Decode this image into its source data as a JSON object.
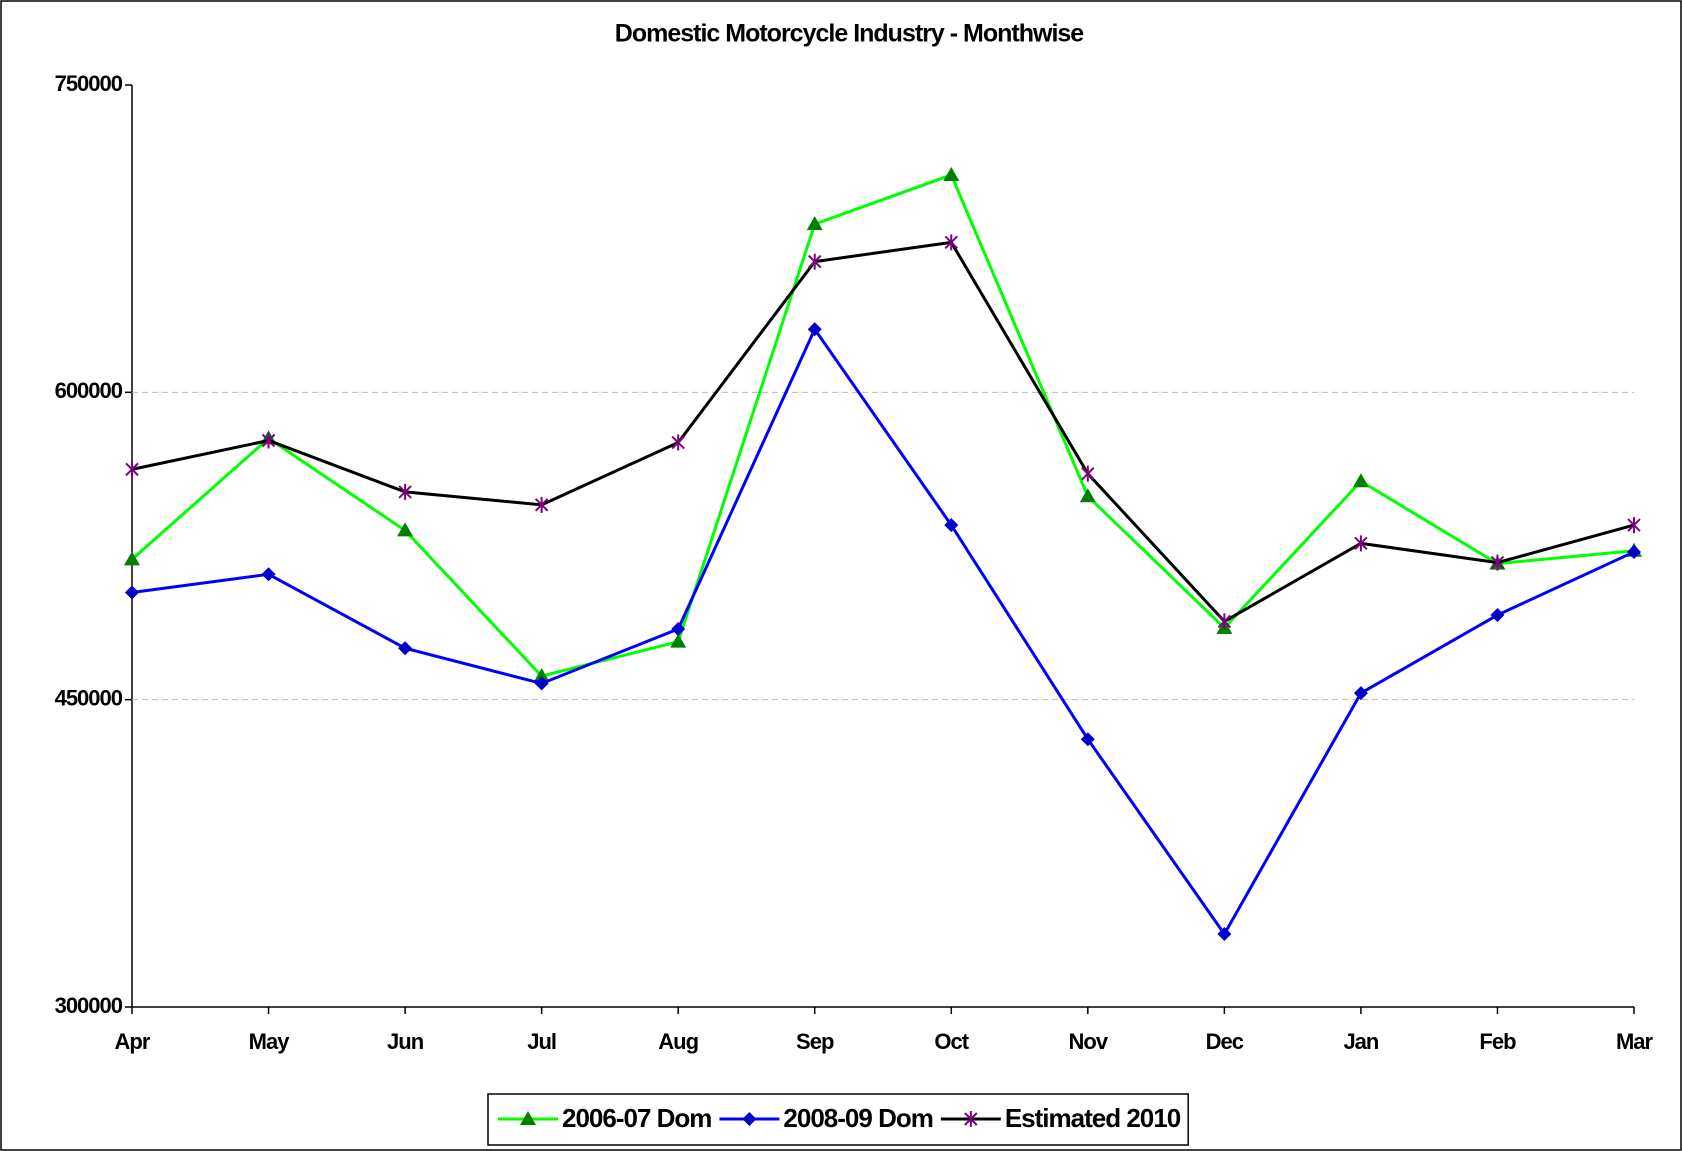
{
  "chart_data": {
    "type": "line",
    "title": "Domestic Motorcycle Industry - Monthwise",
    "categories": [
      "Apr",
      "May",
      "Jun",
      "Jul",
      "Aug",
      "Sep",
      "Oct",
      "Nov",
      "Dec",
      "Jan",
      "Feb",
      "Mar"
    ],
    "series": [
      {
        "name": "2006-07 Dom",
        "color": "#00ff00",
        "marker": "triangle",
        "marker_color": "#008000",
        "values": [
          518500,
          577500,
          532600,
          461500,
          478300,
          682100,
          706100,
          549300,
          485000,
          556600,
          516400,
          522700
        ]
      },
      {
        "name": "2008-09 Dom",
        "color": "#0000ff",
        "marker": "diamond",
        "marker_color": "#0000cc",
        "values": [
          502300,
          511200,
          475100,
          457900,
          484500,
          630800,
          535200,
          430700,
          335600,
          453200,
          491300,
          522100
        ]
      },
      {
        "name": "Estimated 2010",
        "color": "#000000",
        "marker": "star",
        "marker_color": "#800080",
        "values": [
          562400,
          576500,
          551400,
          545100,
          575500,
          663800,
          673200,
          560300,
          488200,
          526300,
          516900,
          535200
        ]
      }
    ],
    "ylim": [
      300000,
      750000
    ],
    "yticks": [
      300000,
      450000,
      600000,
      750000
    ],
    "grid": true,
    "legend": "bottom"
  }
}
